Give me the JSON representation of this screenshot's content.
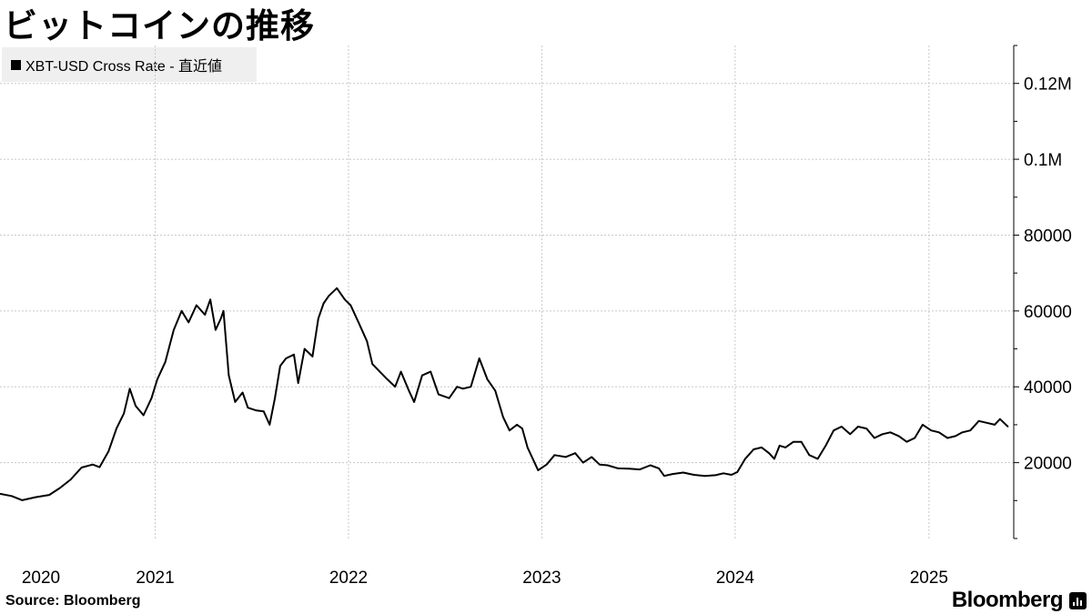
{
  "title": "ビットコインの推移",
  "source": "Source:  Bloomberg",
  "brand": {
    "name": "Bloomberg",
    "icon": "bloomberg-chart-icon"
  },
  "colors": {
    "line": "#000000",
    "grid": "#c8c8c8",
    "legend_bg": "#efefef",
    "background": "#ffffff"
  },
  "chart_data": {
    "type": "line",
    "title": "ビットコインの推移",
    "xlabel": "",
    "ylabel": "",
    "grid": true,
    "legend_position": "top-left",
    "y_axis_side": "right",
    "ylim": [
      0,
      130000
    ],
    "xlim": [
      "2020-03-14",
      "2025-06-10"
    ],
    "y_ticks": [
      {
        "value": 20000,
        "label": "20000"
      },
      {
        "value": 40000,
        "label": "40000"
      },
      {
        "value": 60000,
        "label": "60000"
      },
      {
        "value": 80000,
        "label": "80000"
      },
      {
        "value": 100000,
        "label": "0.1M"
      },
      {
        "value": 120000,
        "label": "0.12M"
      }
    ],
    "x_ticks": [
      {
        "date": "2020-01-01",
        "label": "2020",
        "gridline": false
      },
      {
        "date": "2021-01-01",
        "label": "2021",
        "gridline": true
      },
      {
        "date": "2022-01-01",
        "label": "2022",
        "gridline": true
      },
      {
        "date": "2023-01-01",
        "label": "2023",
        "gridline": true
      },
      {
        "date": "2024-01-01",
        "label": "2024",
        "gridline": true
      },
      {
        "date": "2025-01-01",
        "label": "2025",
        "gridline": true
      }
    ],
    "series": [
      {
        "name": "XBT-USD Cross Rate - 直近値",
        "color": "#000000",
        "points": [
          [
            "2020-03-14",
            11800
          ],
          [
            "2020-04-05",
            11200
          ],
          [
            "2020-04-25",
            10100
          ],
          [
            "2020-05-20",
            10900
          ],
          [
            "2020-06-15",
            11500
          ],
          [
            "2020-07-05",
            13300
          ],
          [
            "2020-07-25",
            15500
          ],
          [
            "2020-08-15",
            18700
          ],
          [
            "2020-09-05",
            19500
          ],
          [
            "2020-09-18",
            18800
          ],
          [
            "2020-10-05",
            23000
          ],
          [
            "2020-10-20",
            29000
          ],
          [
            "2020-11-03",
            33000
          ],
          [
            "2020-11-14",
            39500
          ],
          [
            "2020-11-25",
            35000
          ],
          [
            "2020-12-10",
            32500
          ],
          [
            "2020-12-25",
            37000
          ],
          [
            "2021-01-05",
            42000
          ],
          [
            "2021-01-20",
            46500
          ],
          [
            "2021-02-05",
            55000
          ],
          [
            "2021-02-20",
            60000
          ],
          [
            "2021-03-05",
            57000
          ],
          [
            "2021-03-20",
            61500
          ],
          [
            "2021-04-05",
            59000
          ],
          [
            "2021-04-15",
            63000
          ],
          [
            "2021-04-25",
            55000
          ],
          [
            "2021-05-05",
            58000
          ],
          [
            "2021-05-10",
            60000
          ],
          [
            "2021-05-20",
            43000
          ],
          [
            "2021-06-01",
            36000
          ],
          [
            "2021-06-15",
            38500
          ],
          [
            "2021-06-25",
            34500
          ],
          [
            "2021-07-10",
            33800
          ],
          [
            "2021-07-25",
            33500
          ],
          [
            "2021-08-05",
            30000
          ],
          [
            "2021-08-15",
            37000
          ],
          [
            "2021-08-25",
            45500
          ],
          [
            "2021-09-05",
            47500
          ],
          [
            "2021-09-20",
            48500
          ],
          [
            "2021-09-28",
            41000
          ],
          [
            "2021-10-10",
            50000
          ],
          [
            "2021-10-25",
            48000
          ],
          [
            "2021-11-05",
            58000
          ],
          [
            "2021-11-15",
            62000
          ],
          [
            "2021-11-25",
            64000
          ],
          [
            "2021-12-10",
            66000
          ],
          [
            "2021-12-25",
            63000
          ],
          [
            "2022-01-05",
            61500
          ],
          [
            "2022-01-20",
            57000
          ],
          [
            "2022-02-05",
            52000
          ],
          [
            "2022-02-15",
            46000
          ],
          [
            "2022-03-01",
            44000
          ],
          [
            "2022-03-15",
            42000
          ],
          [
            "2022-03-30",
            40000
          ],
          [
            "2022-04-10",
            44000
          ],
          [
            "2022-04-25",
            39000
          ],
          [
            "2022-05-05",
            36000
          ],
          [
            "2022-05-20",
            43000
          ],
          [
            "2022-06-05",
            44000
          ],
          [
            "2022-06-20",
            38000
          ],
          [
            "2022-07-10",
            37000
          ],
          [
            "2022-07-25",
            40000
          ],
          [
            "2022-08-05",
            39500
          ],
          [
            "2022-08-20",
            40000
          ],
          [
            "2022-09-05",
            47500
          ],
          [
            "2022-09-20",
            42000
          ],
          [
            "2022-10-05",
            39000
          ],
          [
            "2022-10-20",
            32000
          ],
          [
            "2022-11-01",
            28500
          ],
          [
            "2022-11-15",
            30000
          ],
          [
            "2022-11-25",
            29000
          ],
          [
            "2022-12-05",
            24000
          ],
          [
            "2022-12-15",
            21000
          ],
          [
            "2022-12-25",
            18000
          ],
          [
            "2023-01-10",
            19500
          ],
          [
            "2023-01-25",
            22000
          ],
          [
            "2023-02-15",
            21500
          ],
          [
            "2023-03-05",
            22500
          ],
          [
            "2023-03-20",
            20000
          ],
          [
            "2023-04-05",
            21500
          ],
          [
            "2023-04-20",
            19500
          ],
          [
            "2023-05-05",
            19300
          ],
          [
            "2023-05-25",
            18500
          ],
          [
            "2023-06-15",
            18400
          ],
          [
            "2023-07-05",
            18200
          ],
          [
            "2023-07-25",
            19300
          ],
          [
            "2023-08-10",
            18500
          ],
          [
            "2023-08-20",
            16500
          ],
          [
            "2023-09-05",
            17000
          ],
          [
            "2023-09-25",
            17400
          ],
          [
            "2023-10-15",
            16800
          ],
          [
            "2023-11-05",
            16500
          ],
          [
            "2023-11-25",
            16700
          ],
          [
            "2023-12-10",
            17200
          ],
          [
            "2023-12-25",
            16800
          ],
          [
            "2024-01-05",
            17500
          ],
          [
            "2024-01-20",
            21000
          ],
          [
            "2024-02-05",
            23500
          ],
          [
            "2024-02-20",
            24000
          ],
          [
            "2024-03-05",
            22500
          ],
          [
            "2024-03-15",
            21000
          ],
          [
            "2024-03-25",
            24500
          ],
          [
            "2024-04-05",
            24000
          ],
          [
            "2024-04-20",
            25500
          ],
          [
            "2024-05-05",
            25500
          ],
          [
            "2024-05-20",
            22000
          ],
          [
            "2024-06-05",
            21000
          ],
          [
            "2024-06-20",
            24500
          ],
          [
            "2024-07-05",
            28500
          ],
          [
            "2024-07-20",
            29500
          ],
          [
            "2024-08-05",
            27500
          ],
          [
            "2024-08-20",
            29500
          ],
          [
            "2024-09-05",
            29000
          ],
          [
            "2024-09-20",
            26500
          ],
          [
            "2024-10-05",
            27500
          ],
          [
            "2024-10-20",
            28000
          ],
          [
            "2024-11-05",
            27000
          ],
          [
            "2024-11-20",
            25500
          ],
          [
            "2024-12-05",
            26500
          ],
          [
            "2024-12-20",
            30000
          ],
          [
            "2025-01-05",
            28500
          ],
          [
            "2025-01-20",
            28000
          ],
          [
            "2025-02-05",
            26500
          ],
          [
            "2025-02-20",
            27000
          ],
          [
            "2025-03-05",
            28000
          ],
          [
            "2025-03-20",
            28500
          ],
          [
            "2025-04-05",
            31000
          ],
          [
            "2025-04-20",
            30500
          ],
          [
            "2025-05-05",
            30000
          ],
          [
            "2025-05-15",
            31500
          ],
          [
            "2025-05-30",
            29500
          ]
        ]
      }
    ]
  }
}
